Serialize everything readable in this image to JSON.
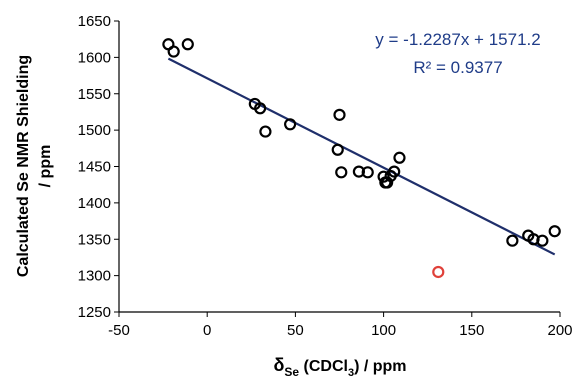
{
  "chart_data": {
    "type": "scatter",
    "title": "",
    "xlabel": {
      "main": "δ",
      "sub": "Se",
      "mid": " (CDCl",
      "sub2": "3",
      "end": ") / ppm"
    },
    "ylabel_line1": "Calculated Se NMR Shielding",
    "ylabel_line2": "/ ppm",
    "xlim": [
      -50,
      200
    ],
    "ylim": [
      1250,
      1650
    ],
    "xticks": [
      "-50",
      "0",
      "50",
      "100",
      "150",
      "200"
    ],
    "yticks": [
      "1250",
      "1300",
      "1350",
      "1400",
      "1450",
      "1500",
      "1550",
      "1600",
      "1650"
    ],
    "grid": false,
    "series": [
      {
        "marker": "open-circle",
        "color": "#000000",
        "points": [
          {
            "x": -22,
            "y": 1618
          },
          {
            "x": -19,
            "y": 1608
          },
          {
            "x": -11,
            "y": 1618
          },
          {
            "x": 27,
            "y": 1536
          },
          {
            "x": 30,
            "y": 1530
          },
          {
            "x": 33,
            "y": 1498
          },
          {
            "x": 47,
            "y": 1508
          },
          {
            "x": 74,
            "y": 1473
          },
          {
            "x": 75,
            "y": 1521
          },
          {
            "x": 76,
            "y": 1442
          },
          {
            "x": 86,
            "y": 1443
          },
          {
            "x": 91,
            "y": 1442
          },
          {
            "x": 100,
            "y": 1436
          },
          {
            "x": 101,
            "y": 1428
          },
          {
            "x": 102,
            "y": 1428
          },
          {
            "x": 104,
            "y": 1437
          },
          {
            "x": 106,
            "y": 1443
          },
          {
            "x": 109,
            "y": 1462
          },
          {
            "x": 173,
            "y": 1348
          },
          {
            "x": 182,
            "y": 1355
          },
          {
            "x": 185,
            "y": 1350
          },
          {
            "x": 190,
            "y": 1348
          },
          {
            "x": 197,
            "y": 1361
          }
        ]
      },
      {
        "marker": "open-circle",
        "color": "#e0413a",
        "points": [
          {
            "x": 131,
            "y": 1305
          }
        ]
      }
    ],
    "trendline": {
      "slope": -1.2287,
      "intercept": 1571.2,
      "x_range": [
        -22,
        197
      ],
      "color": "#1f2f6b"
    },
    "annotations": {
      "equation": "y = -1.2287x + 1571.2",
      "r_squared": "R² = 0.9377"
    }
  }
}
